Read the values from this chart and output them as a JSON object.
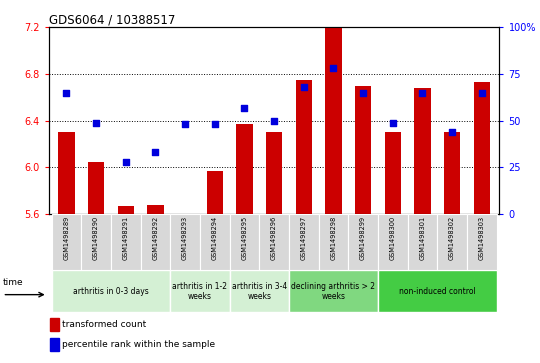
{
  "title": "GDS6064 / 10388517",
  "samples": [
    "GSM1498289",
    "GSM1498290",
    "GSM1498291",
    "GSM1498292",
    "GSM1498293",
    "GSM1498294",
    "GSM1498295",
    "GSM1498296",
    "GSM1498297",
    "GSM1498298",
    "GSM1498299",
    "GSM1498300",
    "GSM1498301",
    "GSM1498302",
    "GSM1498303"
  ],
  "bar_values": [
    6.3,
    6.05,
    5.67,
    5.68,
    5.55,
    5.97,
    6.37,
    6.3,
    6.75,
    7.2,
    6.7,
    6.3,
    6.68,
    6.3,
    6.73
  ],
  "dot_values": [
    65,
    49,
    28,
    33,
    48,
    48,
    57,
    50,
    68,
    78,
    65,
    49,
    65,
    44,
    65
  ],
  "ylim_left": [
    5.6,
    7.2
  ],
  "ylim_right": [
    0,
    100
  ],
  "yticks_left": [
    5.6,
    6.0,
    6.4,
    6.8,
    7.2
  ],
  "yticks_right": [
    0,
    25,
    50,
    75,
    100
  ],
  "bar_color": "#cc0000",
  "dot_color": "#0000dd",
  "groups": [
    {
      "label": "arthritis in 0-3 days",
      "count": 4,
      "color": "#d4f0d4"
    },
    {
      "label": "arthritis in 1-2\nweeks",
      "count": 2,
      "color": "#d4f0d4"
    },
    {
      "label": "arthritis in 3-4\nweeks",
      "count": 2,
      "color": "#d4f0d4"
    },
    {
      "label": "declining arthritis > 2\nweeks",
      "count": 3,
      "color": "#80d880"
    },
    {
      "label": "non-induced control",
      "count": 4,
      "color": "#44cc44"
    }
  ],
  "legend_labels": [
    "transformed count",
    "percentile rank within the sample"
  ],
  "time_label": "time"
}
